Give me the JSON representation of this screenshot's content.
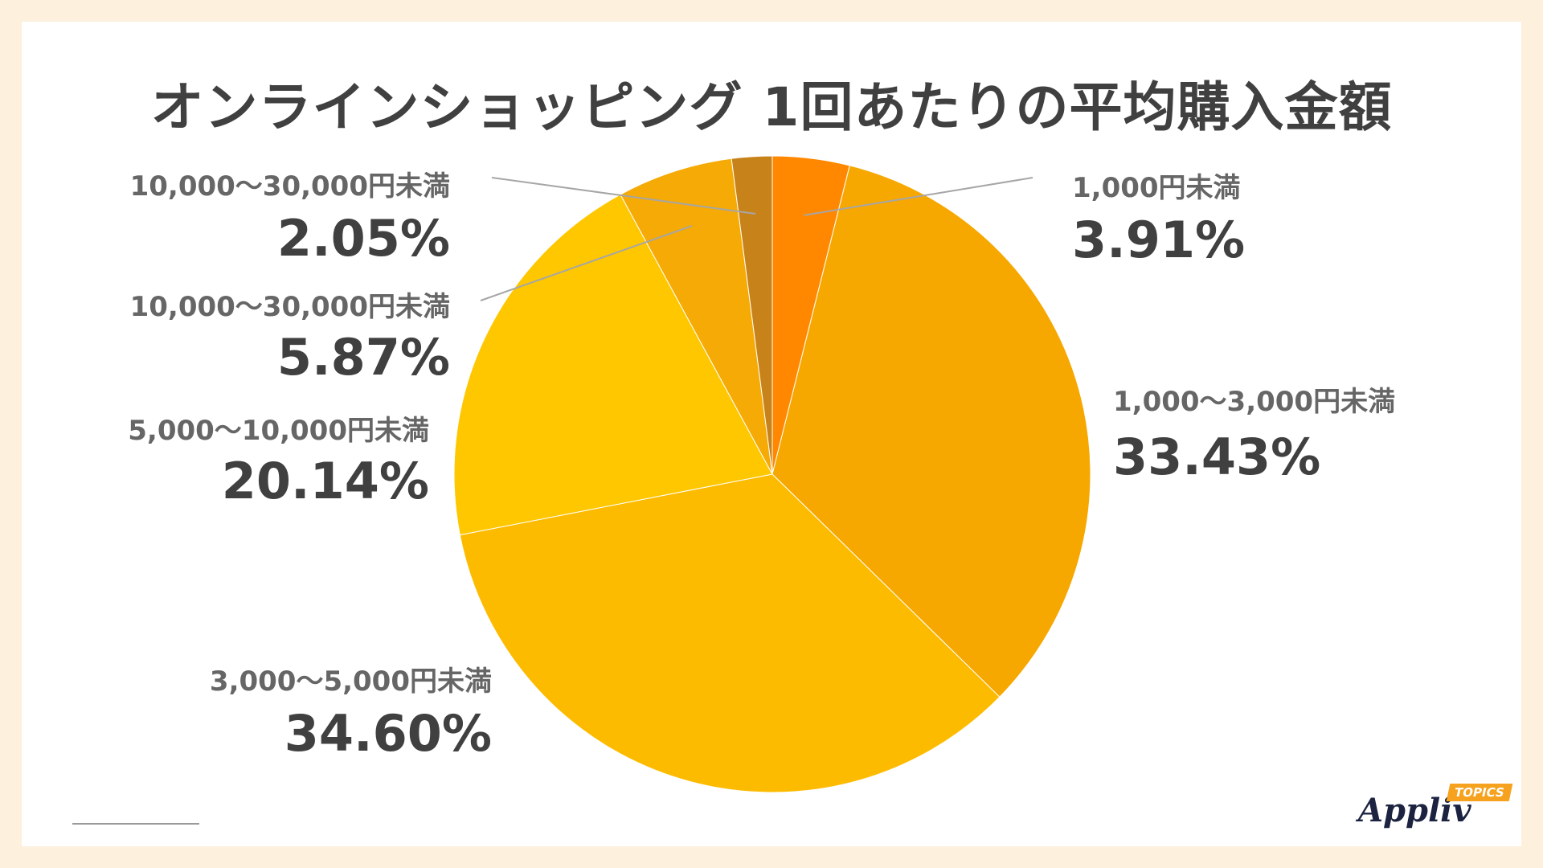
{
  "chart_data": {
    "type": "pie",
    "title": "オンラインショッピング 1回あたりの平均購入金額",
    "slices": [
      {
        "label": "1,000円未満",
        "value": 3.91,
        "display": "3.91%",
        "color": "#ff8800"
      },
      {
        "label": "1,000〜3,000円未満",
        "value": 33.43,
        "display": "33.43%",
        "color": "#f6a800"
      },
      {
        "label": "3,000〜5,000円未満",
        "value": 34.6,
        "display": "34.60%",
        "color": "#fdbb00"
      },
      {
        "label": "5,000〜10,000円未満",
        "value": 20.14,
        "display": "20.14%",
        "color": "#fec700"
      },
      {
        "label": "10,000〜30,000円未満",
        "value": 5.87,
        "display": "5.87%",
        "color": "#f5aa05"
      },
      {
        "label": "10,000〜30,000円未満",
        "value": 2.05,
        "display": "2.05%",
        "color": "#c8821a"
      }
    ]
  },
  "brand": {
    "logo_text": "Appliv",
    "logo_tag": "TOPICS"
  }
}
